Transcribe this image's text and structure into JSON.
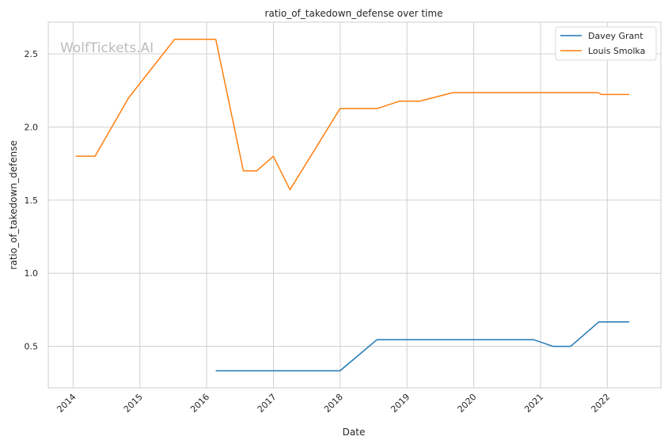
{
  "chart_data": {
    "type": "line",
    "title": "ratio_of_takedown_defense over time",
    "xlabel": "Date",
    "ylabel": "ratio_of_takedown_defense",
    "watermark": "WolfTickets.AI",
    "x_ticks": [
      "2014",
      "2015",
      "2016",
      "2017",
      "2018",
      "2019",
      "2020",
      "2021",
      "2022"
    ],
    "y_ticks": [
      "0.5",
      "1.0",
      "1.5",
      "2.0",
      "2.5"
    ],
    "xlim": [
      "2013-08-18",
      "2022-10-21"
    ],
    "ylim": [
      0.2167,
      2.7167
    ],
    "grid": true,
    "legend_position": "top-right",
    "series": [
      {
        "name": "Davey Grant",
        "color": "#1f77b4",
        "points": [
          [
            "2016-02-20",
            0.333
          ],
          [
            "2016-06-01",
            0.333
          ],
          [
            "2016-10-01",
            0.333
          ],
          [
            "2017-01-01",
            0.333
          ],
          [
            "2017-04-01",
            0.333
          ],
          [
            "2017-12-31",
            0.333
          ],
          [
            "2018-07-20",
            0.545
          ],
          [
            "2018-11-20",
            0.545
          ],
          [
            "2019-03-10",
            0.545
          ],
          [
            "2019-09-10",
            0.545
          ],
          [
            "2020-11-25",
            0.545
          ],
          [
            "2021-03-10",
            0.5
          ],
          [
            "2021-06-15",
            0.5
          ],
          [
            "2021-11-15",
            0.667
          ],
          [
            "2022-05-01",
            0.667
          ]
        ]
      },
      {
        "name": "Louis Smolka",
        "color": "#ff7f0e",
        "points": [
          [
            "2014-01-15",
            1.8
          ],
          [
            "2014-05-01",
            1.8
          ],
          [
            "2014-11-01",
            2.2
          ],
          [
            "2015-07-10",
            2.6
          ],
          [
            "2016-01-01",
            2.6
          ],
          [
            "2016-02-20",
            2.6
          ],
          [
            "2016-07-20",
            1.7
          ],
          [
            "2016-10-01",
            1.7
          ],
          [
            "2016-12-31",
            1.8
          ],
          [
            "2017-04-01",
            1.571
          ],
          [
            "2017-12-31",
            2.125
          ],
          [
            "2018-07-20",
            2.125
          ],
          [
            "2018-11-20",
            2.176
          ],
          [
            "2019-03-10",
            2.176
          ],
          [
            "2019-09-10",
            2.235
          ],
          [
            "2021-11-10",
            2.235
          ],
          [
            "2021-12-01",
            2.222
          ],
          [
            "2022-05-01",
            2.222
          ]
        ]
      }
    ]
  }
}
